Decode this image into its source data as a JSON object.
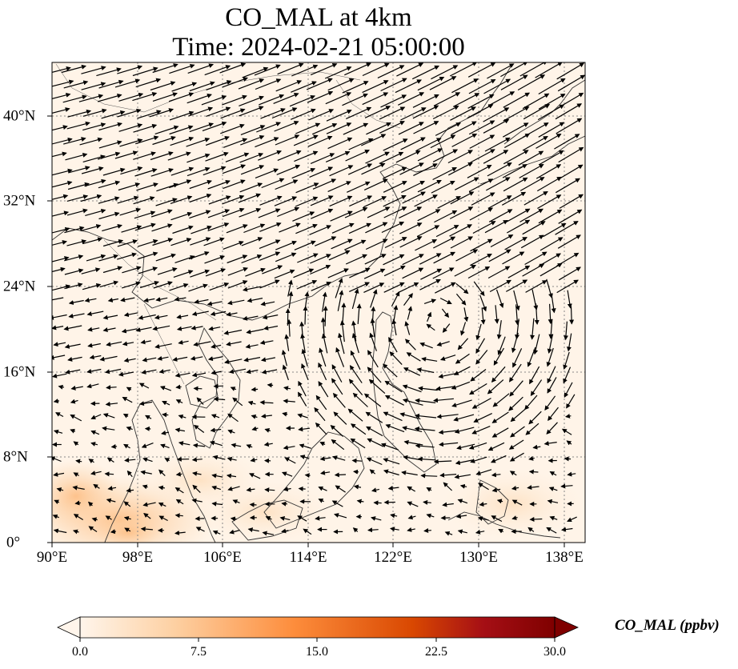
{
  "title_line1": "CO_MAL at 4km",
  "title_line2": "Time: 2024-02-21 05:00:00",
  "map": {
    "lon_range": [
      90,
      140
    ],
    "lat_range": [
      0,
      45
    ],
    "grid_lines": true,
    "x_ticks": [
      {
        "value": 90,
        "label": "90°E"
      },
      {
        "value": 98,
        "label": "98°E"
      },
      {
        "value": 106,
        "label": "106°E"
      },
      {
        "value": 114,
        "label": "114°E"
      },
      {
        "value": 122,
        "label": "122°E"
      },
      {
        "value": 130,
        "label": "130°E"
      },
      {
        "value": 138,
        "label": "138°E"
      }
    ],
    "y_ticks": [
      {
        "value": 40,
        "label": "40°N"
      },
      {
        "value": 32,
        "label": "32°N"
      },
      {
        "value": 24,
        "label": "24°N"
      },
      {
        "value": 16,
        "label": "16°N"
      },
      {
        "value": 8,
        "label": "8°N"
      },
      {
        "value": 0,
        "label": "0°"
      }
    ],
    "field_color_low": "#fff5eb",
    "field_color_high": "#fdd2a5",
    "wind_vectors": "black arrows, anticyclone near 126°E 22°N"
  },
  "colorbar": {
    "label": "CO_MAL (ppbv)",
    "min": 0.0,
    "max": 30.0,
    "extend": "both",
    "colormap": [
      "#fff5eb",
      "#fdd0a2",
      "#fd8d3c",
      "#d94801",
      "#a50f15",
      "#7f0000"
    ],
    "ticks": [
      "0.0",
      "7.5",
      "15.0",
      "22.5",
      "30.0"
    ]
  }
}
